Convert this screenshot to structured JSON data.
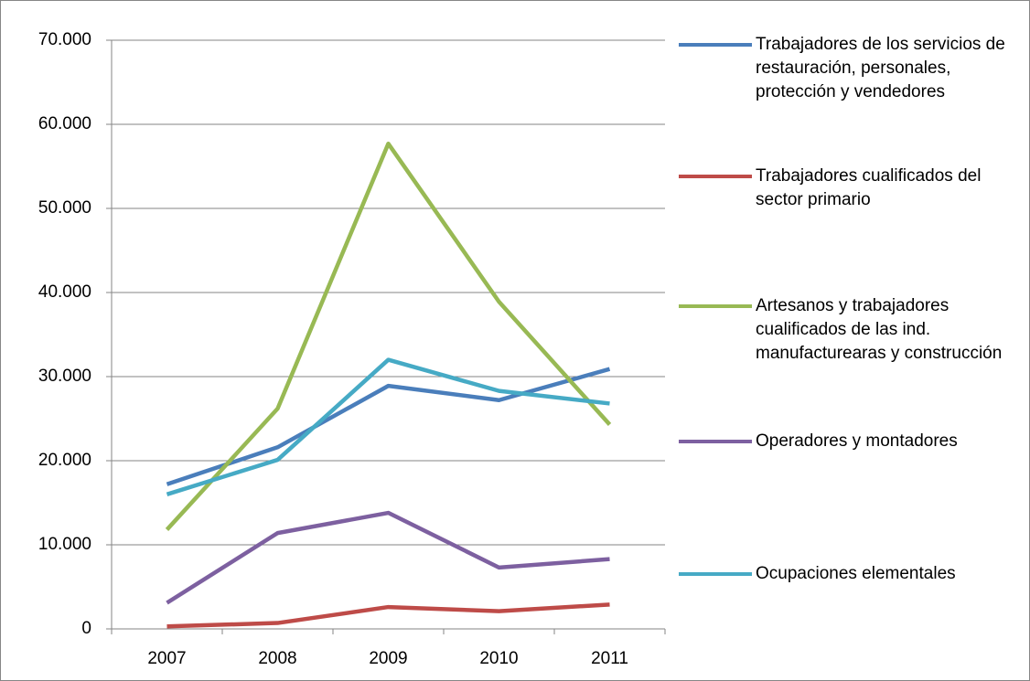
{
  "chart_data": {
    "type": "line",
    "categories": [
      "2007",
      "2008",
      "2009",
      "2010",
      "2011"
    ],
    "series": [
      {
        "name": "Trabajadores de los servicios de restauración, personales, protección y vendedores",
        "color": "#4a7ebb",
        "values": [
          17200,
          21600,
          28900,
          27200,
          30900
        ]
      },
      {
        "name": "Trabajadores cualificados del sector primario",
        "color": "#be4b48",
        "values": [
          300,
          700,
          2600,
          2100,
          2900
        ]
      },
      {
        "name": "Artesanos y trabajadores cualificados de las ind. manufacturearas y construcción",
        "color": "#98b954",
        "values": [
          11800,
          26200,
          57700,
          38900,
          24300
        ]
      },
      {
        "name": "Operadores y montadores",
        "color": "#7d60a0",
        "values": [
          3100,
          11400,
          13800,
          7300,
          8300
        ]
      },
      {
        "name": "Ocupaciones elementales",
        "color": "#46aac5",
        "values": [
          16000,
          20100,
          32000,
          28300,
          26800
        ]
      }
    ],
    "ylim": [
      0,
      70000
    ],
    "yticks": [
      0,
      {
        "value": 10000,
        "label": "10.000"
      },
      {
        "value": 20000,
        "label": "20.000"
      },
      {
        "value": 30000,
        "label": "30.000"
      },
      {
        "value": 40000,
        "label": "40.000"
      },
      {
        "value": 50000,
        "label": "50.000"
      },
      {
        "value": 60000,
        "label": "60.000"
      },
      {
        "value": 70000,
        "label": "70.000"
      }
    ],
    "grid": true,
    "legend": "right"
  }
}
